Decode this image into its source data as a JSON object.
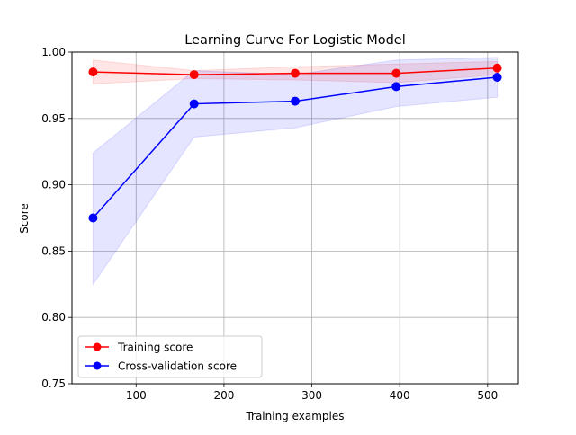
{
  "chart_data": {
    "type": "line",
    "title": "Learning Curve For Logistic Model",
    "xlabel": "Training examples",
    "ylabel": "Score",
    "xlim": [
      27,
      535
    ],
    "ylim": [
      0.75,
      1.0
    ],
    "xticks": [
      100,
      200,
      300,
      400,
      500
    ],
    "xtick_labels": [
      "100",
      "200",
      "300",
      "400",
      "500"
    ],
    "yticks": [
      0.75,
      0.8,
      0.85,
      0.9,
      0.95,
      1.0
    ],
    "ytick_labels": [
      "0.75",
      "0.80",
      "0.85",
      "0.90",
      "0.95",
      "1.00"
    ],
    "grid": true,
    "legend": "lower-left",
    "x": [
      51,
      166,
      281,
      396,
      511
    ],
    "series": [
      {
        "name": "Training score",
        "color": "#ff0000",
        "marker": "circle",
        "values": [
          0.985,
          0.983,
          0.984,
          0.984,
          0.988
        ],
        "band_lower": [
          0.976,
          0.98,
          0.979,
          0.977,
          0.983
        ],
        "band_upper": [
          0.994,
          0.986,
          0.989,
          0.991,
          0.993
        ]
      },
      {
        "name": "Cross-validation score",
        "color": "#0000ff",
        "marker": "circle",
        "values": [
          0.875,
          0.961,
          0.963,
          0.974,
          0.981
        ],
        "band_lower": [
          0.825,
          0.936,
          0.943,
          0.959,
          0.966
        ],
        "band_upper": [
          0.924,
          0.986,
          0.983,
          0.994,
          0.996
        ]
      }
    ]
  }
}
